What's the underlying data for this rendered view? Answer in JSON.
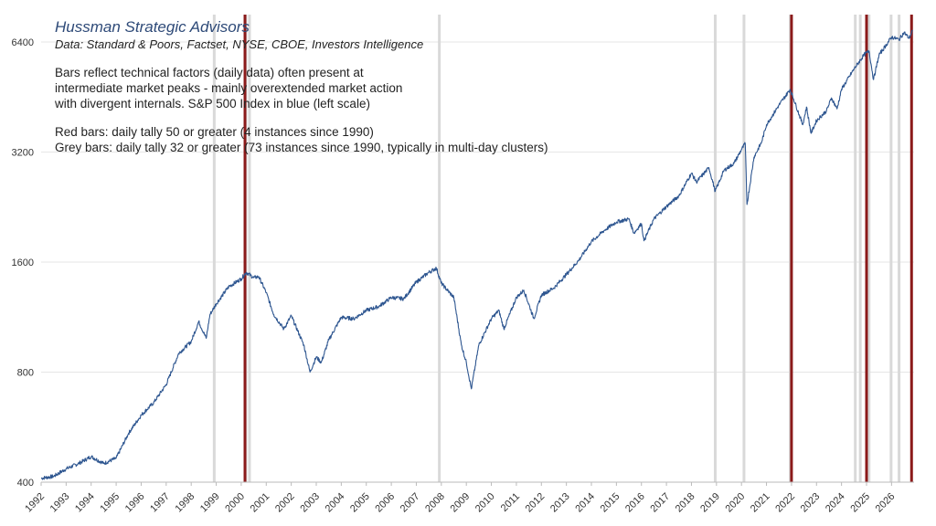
{
  "header": {
    "title": "Hussman Strategic Advisors",
    "source": "Data: Standard & Poors, Factset, NYSE, CBOE, Investors Intelligence",
    "note_lines": [
      "Bars reflect technical factors (daily data) often present at",
      "intermediate market peaks - mainly overextended market action",
      "with divergent internals. S&P 500 Index in blue (left scale)"
    ],
    "red_note": "Red bars: daily tally 50 or greater (4 instances since 1990)",
    "grey_note": "Grey bars: daily tally 32 or greater (73 instances since 1990, typically in multi-day clusters)"
  },
  "colors": {
    "line": "#2e5690",
    "red_bar": "#8b1a1a",
    "grey_bar": "#d9d9d9",
    "grid": "#e6e6e6"
  },
  "chart_data": {
    "type": "line",
    "y_scale": "log2",
    "ylim": [
      400,
      6400
    ],
    "yticks": [
      400,
      800,
      1600,
      3200,
      6400
    ],
    "xlim": [
      1992.0,
      2026.9
    ],
    "xticks": [
      "1992",
      "1993",
      "1994",
      "1995",
      "1996",
      "1997",
      "1998",
      "1999",
      "2000",
      "2001",
      "2002",
      "2003",
      "2004",
      "2005",
      "2006",
      "2007",
      "2008",
      "2009",
      "2010",
      "2011",
      "2012",
      "2013",
      "2014",
      "2015",
      "2016",
      "2017",
      "2018",
      "2019",
      "2020",
      "2021",
      "2022",
      "2023",
      "2024",
      "2025",
      "2026"
    ],
    "grid": true,
    "series": [
      {
        "name": "S&P 500 Index",
        "x": [
          1992.0,
          1992.5,
          1993.0,
          1993.5,
          1994.0,
          1994.5,
          1995.0,
          1995.5,
          1996.0,
          1996.5,
          1997.0,
          1997.5,
          1998.0,
          1998.3,
          1998.6,
          1998.75,
          1999.0,
          1999.5,
          2000.0,
          2000.2,
          2000.5,
          2000.7,
          2001.0,
          2001.3,
          2001.7,
          2002.0,
          2002.5,
          2002.75,
          2003.0,
          2003.2,
          2003.5,
          2004.0,
          2004.5,
          2005.0,
          2005.5,
          2006.0,
          2006.5,
          2007.0,
          2007.5,
          2007.8,
          2008.0,
          2008.5,
          2008.8,
          2009.0,
          2009.2,
          2009.5,
          2010.0,
          2010.3,
          2010.5,
          2011.0,
          2011.3,
          2011.7,
          2012.0,
          2012.5,
          2013.0,
          2013.5,
          2014.0,
          2014.5,
          2015.0,
          2015.5,
          2015.7,
          2016.0,
          2016.1,
          2016.5,
          2017.0,
          2017.5,
          2018.0,
          2018.2,
          2018.7,
          2018.95,
          2019.3,
          2019.7,
          2020.0,
          2020.15,
          2020.22,
          2020.5,
          2020.8,
          2021.0,
          2021.5,
          2021.95,
          2022.45,
          2022.6,
          2022.78,
          2023.0,
          2023.4,
          2023.6,
          2023.82,
          2024.0,
          2024.5,
          2024.9,
          2025.1,
          2025.28,
          2025.5,
          2025.8,
          2026.0,
          2026.3,
          2026.5,
          2026.7,
          2026.85
        ],
        "values": [
          410,
          415,
          435,
          450,
          470,
          450,
          465,
          545,
          610,
          660,
          740,
          900,
          970,
          1100,
          990,
          1150,
          1230,
          1370,
          1440,
          1500,
          1450,
          1460,
          1320,
          1150,
          1050,
          1140,
          950,
          800,
          880,
          850,
          980,
          1130,
          1120,
          1180,
          1210,
          1280,
          1270,
          1410,
          1500,
          1540,
          1400,
          1280,
          950,
          850,
          720,
          950,
          1120,
          1180,
          1050,
          1280,
          1340,
          1120,
          1300,
          1360,
          1480,
          1620,
          1820,
          1950,
          2060,
          2100,
          1920,
          2040,
          1830,
          2100,
          2270,
          2430,
          2800,
          2650,
          2900,
          2500,
          2850,
          2980,
          3250,
          3380,
          2300,
          3100,
          3400,
          3800,
          4300,
          4750,
          3800,
          4250,
          3600,
          3900,
          4150,
          4500,
          4200,
          4750,
          5400,
          5900,
          6050,
          5050,
          5900,
          6300,
          6600,
          6500,
          6800,
          6550,
          6900
        ]
      }
    ],
    "grey_bars_x": [
      1998.92,
      2000.18,
      2000.33,
      2007.92,
      2018.95,
      2020.1,
      2021.95,
      2024.55,
      2024.75,
      2025.1,
      2025.98,
      2026.3
    ],
    "red_bars_x": [
      2000.15,
      2022.0,
      2025.0,
      2026.8
    ]
  }
}
